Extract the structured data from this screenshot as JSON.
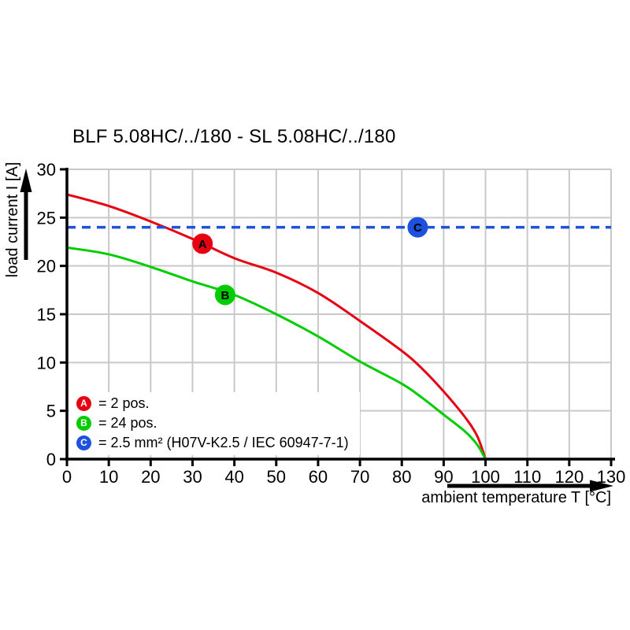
{
  "title": "BLF 5.08HC/../180 - SL 5.08HC/../180",
  "x_axis": {
    "label": "ambient temperature T [°C]",
    "min": 0,
    "max": 130,
    "ticks": [
      0,
      10,
      20,
      30,
      40,
      50,
      60,
      70,
      80,
      90,
      100,
      110,
      120,
      130
    ]
  },
  "y_axis": {
    "label": "load current I [A]",
    "min": 0,
    "max": 30,
    "ticks": [
      0,
      5,
      10,
      15,
      20,
      25,
      30
    ]
  },
  "colors": {
    "series_a": "#e60012",
    "series_b": "#00cd00",
    "series_c": "#1e52dd",
    "grid": "#c9c9c9",
    "axis": "#000000",
    "background": "#ffffff"
  },
  "legend": [
    {
      "id": "A",
      "text": "= 2 pos."
    },
    {
      "id": "B",
      "text": "= 24 pos."
    },
    {
      "id": "C",
      "text": "= 2.5 mm² (H07V-K2.5 / IEC 60947-7-1)"
    }
  ],
  "chart_data": {
    "type": "line",
    "title": "BLF 5.08HC/../180 - SL 5.08HC/../180",
    "xlabel": "ambient temperature T [°C]",
    "ylabel": "load current I [A]",
    "xlim": [
      0,
      130
    ],
    "ylim": [
      0,
      30
    ],
    "grid": true,
    "legend_position": "bottom-left-inside",
    "series": [
      {
        "name": "A",
        "label": "2 pos.",
        "color": "#e60012",
        "style": "solid",
        "points": [
          [
            0,
            27.4
          ],
          [
            10,
            26.2
          ],
          [
            20,
            24.6
          ],
          [
            30,
            22.8
          ],
          [
            40,
            20.8
          ],
          [
            50,
            19.3
          ],
          [
            60,
            17.2
          ],
          [
            70,
            14.3
          ],
          [
            80,
            11.2
          ],
          [
            85,
            9.3
          ],
          [
            90,
            7.0
          ],
          [
            95,
            4.4
          ],
          [
            98,
            2.4
          ],
          [
            100,
            0
          ]
        ]
      },
      {
        "name": "B",
        "label": "24 pos.",
        "color": "#00cd00",
        "style": "solid",
        "points": [
          [
            0,
            21.9
          ],
          [
            10,
            21.2
          ],
          [
            20,
            19.9
          ],
          [
            30,
            18.4
          ],
          [
            40,
            17.0
          ],
          [
            50,
            15.0
          ],
          [
            60,
            12.7
          ],
          [
            70,
            10.1
          ],
          [
            80,
            7.8
          ],
          [
            85,
            6.3
          ],
          [
            90,
            4.6
          ],
          [
            95,
            2.9
          ],
          [
            98,
            1.5
          ],
          [
            100,
            0
          ]
        ]
      },
      {
        "name": "C",
        "label": "2.5 mm² (H07V-K2.5 / IEC 60947-7-1)",
        "color": "#1e52dd",
        "style": "dashed",
        "points": [
          [
            0,
            24
          ],
          [
            130,
            24
          ]
        ]
      }
    ],
    "markers": [
      {
        "label": "A",
        "x": 32.4,
        "y": 22.3,
        "color": "#e60012"
      },
      {
        "label": "B",
        "x": 37.8,
        "y": 17.0,
        "color": "#00cd00"
      },
      {
        "label": "C",
        "x": 83.8,
        "y": 24.0,
        "color": "#1e52dd"
      }
    ]
  }
}
